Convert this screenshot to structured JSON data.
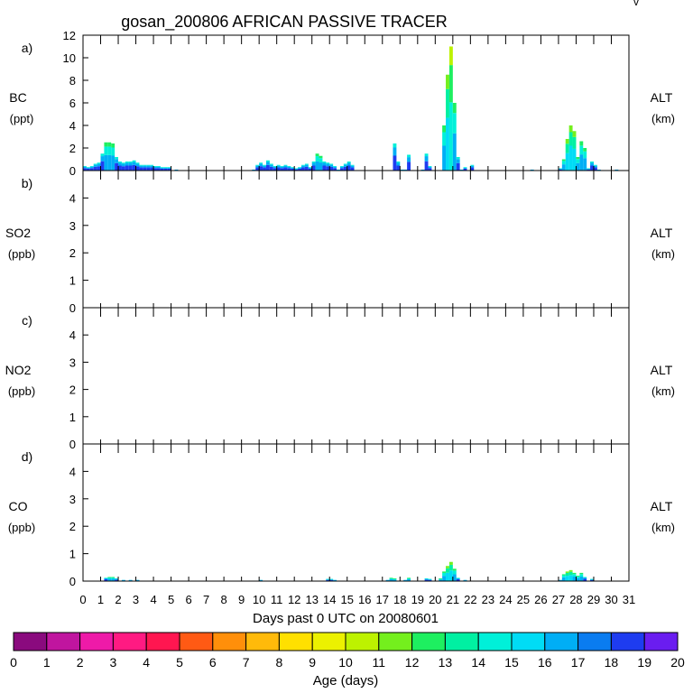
{
  "title": "gosan_200806 AFRICAN PASSIVE TRACER",
  "corner_mark": "v",
  "xlabel": "Days past 0 UTC on 20080601",
  "x_ticks": [
    "0",
    "1",
    "2",
    "3",
    "4",
    "5",
    "6",
    "7",
    "8",
    "9",
    "10",
    "11",
    "12",
    "13",
    "14",
    "15",
    "16",
    "17",
    "18",
    "19",
    "20",
    "21",
    "22",
    "23",
    "24",
    "25",
    "26",
    "27",
    "28",
    "29",
    "30",
    "31"
  ],
  "right_label": "ALT",
  "right_unit": "(km)",
  "colorbar": {
    "label": "Age (days)",
    "ticks": [
      "0",
      "1",
      "2",
      "3",
      "4",
      "5",
      "6",
      "7",
      "8",
      "9",
      "10",
      "11",
      "12",
      "13",
      "14",
      "15",
      "16",
      "17",
      "18",
      "19",
      "20"
    ],
    "colors": [
      "#8a0a7e",
      "#c0159f",
      "#ee1aa8",
      "#ff1a82",
      "#ff1650",
      "#ff5a14",
      "#ff8f0a",
      "#ffba0a",
      "#ffe000",
      "#ecf100",
      "#bdf200",
      "#74ef1d",
      "#1eef60",
      "#00f0a2",
      "#00f0d9",
      "#00dcf5",
      "#00aef5",
      "#0a7cf0",
      "#1e3cf0",
      "#6a1df0"
    ]
  },
  "panels": [
    {
      "letter": "a)",
      "species": "BC",
      "unit": "(ppt)",
      "yticks": [
        "0",
        "2",
        "4",
        "6",
        "8",
        "10",
        "12"
      ]
    },
    {
      "letter": "b)",
      "species": "SO2",
      "unit": "(ppb)",
      "yticks": [
        "0",
        "1",
        "2",
        "3",
        "4"
      ]
    },
    {
      "letter": "c)",
      "species": "NO2",
      "unit": "(ppb)",
      "yticks": [
        "0",
        "1",
        "2",
        "3",
        "4"
      ]
    },
    {
      "letter": "d)",
      "species": "CO",
      "unit": "(ppb)",
      "yticks": [
        "0",
        "1",
        "2",
        "3",
        "4"
      ]
    }
  ],
  "chart_data": [
    {
      "type": "bar",
      "stacked_by_age": true,
      "ylim": [
        0,
        12
      ],
      "x": [
        0.1,
        0.3,
        0.5,
        0.7,
        0.9,
        1.1,
        1.3,
        1.5,
        1.7,
        1.9,
        2.1,
        2.3,
        2.5,
        2.7,
        2.9,
        3.1,
        3.3,
        3.5,
        3.7,
        3.9,
        4.1,
        4.3,
        4.5,
        4.7,
        4.9,
        5.3,
        5.7,
        9.7,
        9.9,
        10.1,
        10.3,
        10.5,
        10.7,
        10.9,
        11.1,
        11.3,
        11.5,
        11.7,
        11.9,
        12.1,
        12.3,
        12.5,
        12.7,
        12.9,
        13.1,
        13.3,
        13.5,
        13.7,
        13.9,
        14.1,
        14.3,
        14.5,
        14.7,
        14.9,
        15.1,
        15.3,
        15.5,
        15.7,
        15.9,
        16.1,
        16.3,
        17.7,
        17.9,
        18.1,
        18.3,
        18.5,
        19.3,
        19.5,
        19.7,
        20.5,
        20.7,
        20.9,
        21.1,
        21.3,
        21.5,
        21.7,
        22.1,
        25.5,
        26.5,
        27.1,
        27.3,
        27.5,
        27.7,
        27.9,
        28.1,
        28.3,
        28.5,
        28.7,
        28.9,
        29.1,
        29.3,
        30.3
      ],
      "total": [
        0.4,
        0.3,
        0.4,
        0.6,
        0.7,
        1.5,
        2.5,
        2.5,
        2.4,
        1.2,
        0.8,
        0.7,
        0.8,
        0.8,
        0.9,
        0.7,
        0.5,
        0.5,
        0.5,
        0.5,
        0.4,
        0.4,
        0.3,
        0.3,
        0.3,
        0.1,
        0.05,
        0.1,
        0.5,
        0.7,
        0.5,
        0.9,
        0.6,
        0.4,
        0.5,
        0.4,
        0.5,
        0.4,
        0.3,
        0.2,
        0.3,
        0.5,
        0.6,
        0.3,
        0.8,
        1.5,
        1.3,
        0.8,
        0.7,
        0.6,
        0.4,
        0.1,
        0.4,
        0.6,
        0.8,
        0.5,
        0.05,
        0.05,
        0.05,
        0.05,
        0.05,
        2.4,
        0.8,
        0.1,
        0.1,
        1.4,
        0.1,
        1.5,
        0.4,
        4.0,
        8.5,
        11.0,
        6.0,
        1.2,
        0.1,
        0.3,
        0.5,
        0.1,
        0.05,
        0.2,
        1.0,
        2.8,
        4.0,
        3.5,
        1.2,
        2.6,
        2.0,
        0.2,
        0.8,
        0.5,
        0.1,
        0.1
      ],
      "dominant_age_days": [
        18,
        18,
        18,
        18,
        18,
        18,
        16,
        16,
        16,
        18,
        18,
        18,
        18,
        18,
        18,
        18,
        18,
        18,
        18,
        18,
        18,
        18,
        18,
        18,
        18,
        18,
        18,
        18,
        18,
        18,
        18,
        18,
        18,
        18,
        18,
        18,
        18,
        18,
        18,
        18,
        18,
        18,
        18,
        18,
        18,
        16,
        16,
        18,
        18,
        18,
        18,
        18,
        18,
        18,
        18,
        18,
        18,
        18,
        18,
        18,
        18,
        18,
        18,
        18,
        18,
        18,
        18,
        18,
        18,
        16,
        15,
        14,
        16,
        18,
        18,
        18,
        18,
        18,
        18,
        18,
        16,
        15,
        15,
        15,
        16,
        16,
        16,
        18,
        18,
        18,
        18,
        18
      ]
    },
    {
      "type": "bar",
      "stacked_by_age": true,
      "ylim": [
        0,
        5
      ],
      "x": [],
      "total": [],
      "dominant_age_days": []
    },
    {
      "type": "bar",
      "stacked_by_age": true,
      "ylim": [
        0,
        5
      ],
      "x": [],
      "total": [],
      "dominant_age_days": []
    },
    {
      "type": "bar",
      "stacked_by_age": true,
      "ylim": [
        0,
        5
      ],
      "x": [
        1.3,
        1.5,
        1.7,
        1.9,
        2.3,
        2.7,
        3.1,
        10.1,
        10.5,
        13.9,
        14.1,
        14.3,
        15.7,
        17.3,
        17.5,
        17.7,
        18.3,
        18.5,
        19.5,
        19.7,
        20.3,
        20.5,
        20.7,
        20.9,
        21.1,
        21.3,
        21.7,
        27.1,
        27.3,
        27.5,
        27.7,
        27.9,
        28.1,
        28.3,
        28.5,
        28.9
      ],
      "total": [
        0.12,
        0.15,
        0.15,
        0.1,
        0.05,
        0.05,
        0.05,
        0.05,
        0.03,
        0.08,
        0.08,
        0.05,
        0.03,
        0.05,
        0.12,
        0.1,
        0.05,
        0.12,
        0.1,
        0.08,
        0.1,
        0.35,
        0.55,
        0.7,
        0.45,
        0.12,
        0.05,
        0.05,
        0.25,
        0.35,
        0.4,
        0.3,
        0.2,
        0.3,
        0.15,
        0.08
      ],
      "dominant_age_days": [
        18,
        16,
        16,
        18,
        18,
        18,
        18,
        18,
        18,
        18,
        18,
        18,
        18,
        18,
        16,
        16,
        18,
        16,
        18,
        18,
        16,
        16,
        15,
        15,
        16,
        18,
        18,
        18,
        16,
        15,
        15,
        16,
        16,
        16,
        18,
        18
      ]
    }
  ]
}
